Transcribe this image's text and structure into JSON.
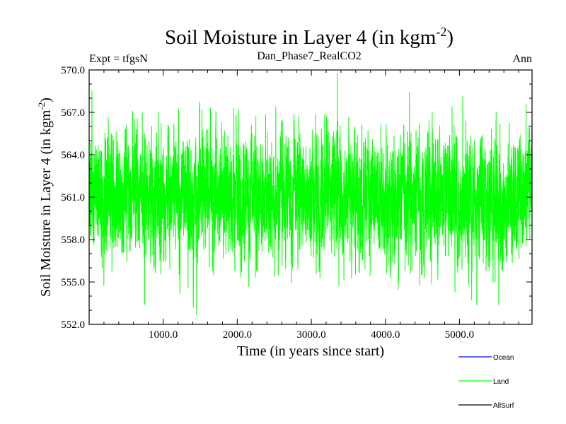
{
  "chart_data": {
    "type": "line",
    "title": "Soil Moisture in Layer 4 (in kgm",
    "title_sup": "-2",
    "title_close": ")",
    "subtitle_left": "Expt = tfgsN",
    "subtitle_center": "Dan_Phase7_RealCO2",
    "subtitle_right": "Ann",
    "xlabel": "Time (in years since start)",
    "ylabel": "Soil Moisture in Layer 4 (in kgm",
    "ylabel_sup": "-2",
    "ylabel_close": ")",
    "xlim": [
      0,
      5980
    ],
    "ylim": [
      552.0,
      570.0
    ],
    "xticks": [
      1000,
      2000,
      3000,
      4000,
      5000
    ],
    "xtick_labels": [
      "1000.0",
      "2000.0",
      "3000.0",
      "4000.0",
      "5000.0"
    ],
    "yticks": [
      552,
      555,
      558,
      561,
      564,
      567,
      570
    ],
    "ytick_labels": [
      "552.0",
      "555.0",
      "558.0",
      "561.0",
      "564.0",
      "567.0",
      "570.0"
    ],
    "series": [
      {
        "name": "Ocean",
        "color": "#0000ff",
        "values": [],
        "note": "no visible data (legend only)"
      },
      {
        "name": "Land",
        "color": "#00ff00",
        "summary": {
          "x_start": 0,
          "x_end": 5980,
          "step": 1,
          "mean": 561.0,
          "min": 552.7,
          "max": 569.8,
          "approx_std": 2.2
        },
        "extremes": [
          {
            "x": 3350,
            "y": 569.8
          },
          {
            "x": 1450,
            "y": 552.7
          },
          {
            "x": 750,
            "y": 553.4
          },
          {
            "x": 5530,
            "y": 553.4
          },
          {
            "x": 5900,
            "y": 567.6
          },
          {
            "x": 4900,
            "y": 567.4
          }
        ]
      },
      {
        "name": "AllSurf",
        "color": "#000000",
        "values": [],
        "note": "no visible data (legend only)"
      }
    ],
    "legend": [
      {
        "label": "Ocean",
        "color": "#0000ff"
      },
      {
        "label": "Land",
        "color": "#00ff00"
      },
      {
        "label": "AllSurf",
        "color": "#000000"
      }
    ],
    "legend_position": "bottom-right"
  }
}
